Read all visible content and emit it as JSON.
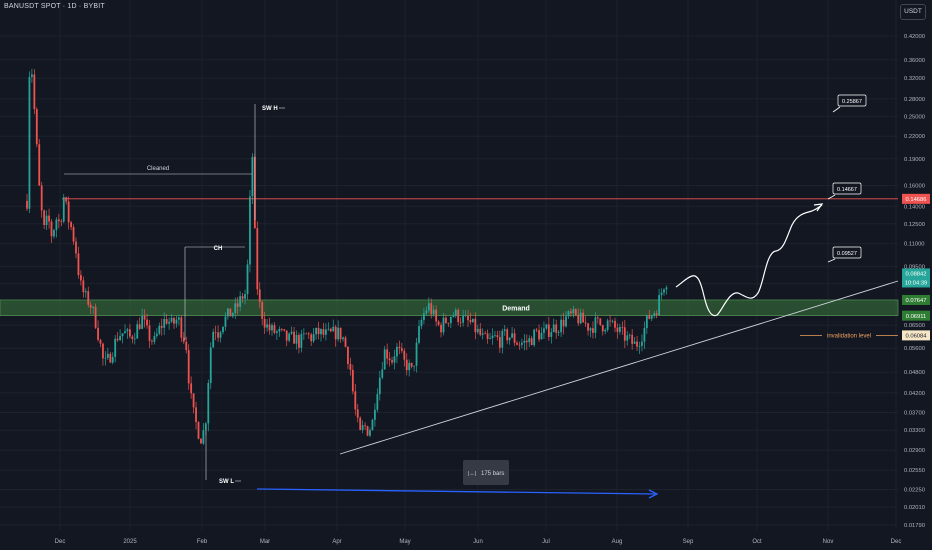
{
  "header": {
    "symbol_title": "BANUSDT SPOT · 1D · BYBIT",
    "currency": "USDT"
  },
  "colors": {
    "background": "#131722",
    "up_candle": "#26a69a",
    "down_candle": "#ef5350",
    "demand_zone": "#3b7a3d",
    "resistance_line": "#ef5350",
    "price_label": "#26a69a",
    "invalidation": "#f0a060",
    "arrow_blue": "#2962ff"
  },
  "chart_data": {
    "type": "candlestick",
    "scale": "log",
    "ylim": [
      0.0165,
      0.48
    ],
    "x_tick_labels": [
      "Dec",
      "2025",
      "Feb",
      "Mar",
      "Apr",
      "May",
      "Jun",
      "Jul",
      "Aug",
      "Sep",
      "Oct",
      "Nov",
      "Dec"
    ],
    "y_tick_labels": [
      "0.42000",
      "0.36000",
      "0.32000",
      "0.28000",
      "0.25000",
      "0.22000",
      "0.19000",
      "0.16000",
      "0.14000",
      "0.12500",
      "0.11000",
      "0.09500",
      "0.08500",
      "0.07500",
      "0.06500",
      "0.05600",
      "0.04800",
      "0.04200",
      "0.03700",
      "0.03300",
      "0.02900",
      "0.02550",
      "0.02250",
      "0.02010",
      "0.01790"
    ],
    "price_labels": {
      "current_price": "0.08842",
      "countdown": "10:04:39",
      "demand_top": "0.07647",
      "demand_bottom": "0.06911",
      "resistance": "0.14686",
      "invalidation": "0.06084"
    },
    "resistance_level": 0.14686,
    "demand_zone": [
      0.06911,
      0.07647
    ],
    "invalidation_level": 0.06084,
    "targets": [
      "0.25867",
      "0.14667",
      "0.09527"
    ],
    "annotations": {
      "sw_high": "SW H",
      "sw_low": "SW L",
      "choch": "CH",
      "cleaned": "Cleaned",
      "demand": "Demand",
      "invalidation": "invalidation level",
      "bars_range": "175 bars"
    },
    "price_path_key_points": [
      {
        "t": "late Nov",
        "close": 0.3
      },
      {
        "t": "early Dec",
        "close": 0.14
      },
      {
        "t": "mid Dec",
        "close": 0.05
      },
      {
        "t": "Jan",
        "close": 0.075
      },
      {
        "t": "early Feb",
        "close": 0.031
      },
      {
        "t": "late Feb",
        "close": 0.27
      },
      {
        "t": "Mar",
        "close": 0.062
      },
      {
        "t": "early Apr",
        "close": 0.03
      },
      {
        "t": "May",
        "close": 0.07
      },
      {
        "t": "Jun",
        "close": 0.066
      },
      {
        "t": "Jul",
        "close": 0.068
      },
      {
        "t": "mid Aug",
        "close": 0.058
      },
      {
        "t": "late Aug",
        "close": 0.08842
      }
    ],
    "projection_path": [
      0.08,
      0.09,
      0.071,
      0.078,
      0.092,
      0.115,
      0.147
    ]
  }
}
